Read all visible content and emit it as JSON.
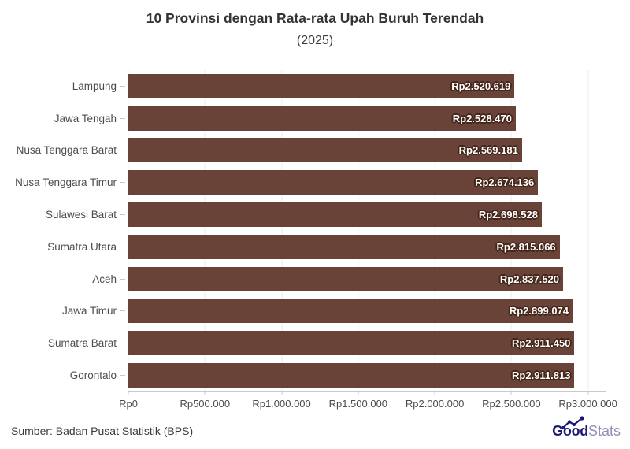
{
  "header": {
    "title": "10 Provinsi dengan Rata-rata Upah Buruh Terendah",
    "subtitle": "(2025)"
  },
  "chart_data": {
    "type": "bar",
    "orientation": "horizontal",
    "title": "10 Provinsi dengan Rata-rata Upah Buruh Terendah",
    "subtitle": "(2025)",
    "categories": [
      "Lampung",
      "Jawa Tengah",
      "Nusa Tenggara Barat",
      "Nusa Tenggara Timur",
      "Sulawesi Barat",
      "Sumatra Utara",
      "Aceh",
      "Jawa Timur",
      "Sumatra Barat",
      "Gorontalo"
    ],
    "values": [
      2520619,
      2528470,
      2569181,
      2674136,
      2698528,
      2815066,
      2837520,
      2899074,
      2911450,
      2911813
    ],
    "value_labels": [
      "Rp2.520.619",
      "Rp2.528.470",
      "Rp2.569.181",
      "Rp2.674.136",
      "Rp2.698.528",
      "Rp2.815.066",
      "Rp2.837.520",
      "Rp2.899.074",
      "Rp2.911.450",
      "Rp2.911.813"
    ],
    "x_ticks": [
      {
        "value": 0,
        "label": "Rp0"
      },
      {
        "value": 500000,
        "label": "Rp500.000"
      },
      {
        "value": 1000000,
        "label": "Rp1.000.000"
      },
      {
        "value": 1500000,
        "label": "Rp1.500.000"
      },
      {
        "value": 2000000,
        "label": "Rp2.000.000"
      },
      {
        "value": 2500000,
        "label": "Rp2.500.000"
      },
      {
        "value": 3000000,
        "label": "Rp3.000.000"
      }
    ],
    "xlim": [
      0,
      3120000
    ],
    "xlabel": "",
    "ylabel": "",
    "grid": true,
    "legend": false,
    "bar_color": "#694337",
    "value_label_outline": "#45261b"
  },
  "footer": {
    "source": "Sumber: Badan Pusat Statistik (BPS)",
    "logo": {
      "bold": "Good",
      "light": "Stats"
    }
  },
  "colors": {
    "background": "#ffffff",
    "title": "#333333",
    "axis_label": "#4c4c4c",
    "gridline": "#ededed",
    "axis_line": "#c9c9c9",
    "bar": "#694337",
    "logo_navy": "#1b1a72",
    "logo_light": "#8e90b4"
  }
}
